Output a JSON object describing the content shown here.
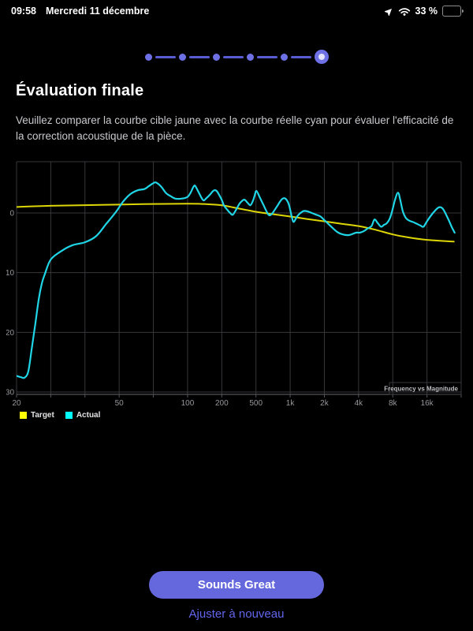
{
  "status_bar": {
    "time": "09:58",
    "date": "Mercredi 11 décembre",
    "battery_percent": "33 %",
    "icons": [
      "location-icon",
      "wifi-icon",
      "battery-icon"
    ]
  },
  "stepper": {
    "total_steps": 6,
    "current_step": 6
  },
  "header": {
    "title": "Évaluation finale",
    "description": "Veuillez comparer la courbe cible jaune avec la courbe réelle cyan pour évaluer l'efficacité de la correction acoustique de la pièce."
  },
  "chart_data": {
    "type": "line",
    "title": "Frequency vs Magnitude",
    "grid": true,
    "legend_position": "bottom-left",
    "x_axis": {
      "scale": "log",
      "unit": "Hz",
      "gridline_freqs": [
        20,
        30,
        40,
        50,
        70,
        100,
        200,
        500,
        1000,
        2000,
        4000,
        8000,
        16000
      ],
      "edge_freq": 24000,
      "tick_label_freqs": [
        20,
        50,
        100,
        200,
        500,
        1000,
        2000,
        4000,
        8000,
        16000
      ],
      "tick_labels": [
        "20",
        "50",
        "100",
        "200",
        "500",
        "1k",
        "2k",
        "4k",
        "8k",
        "16k"
      ]
    },
    "y_axis": {
      "unit": "dB",
      "tick_values": [
        0,
        -10,
        -20,
        -30
      ],
      "range": [
        -30.4,
        8.6
      ]
    },
    "series": [
      {
        "name": "Target",
        "legend_color": "#ffff00",
        "curve_color": "#ddd606",
        "points": [
          [
            20,
            1.0
          ],
          [
            30,
            1.2
          ],
          [
            50,
            1.4
          ],
          [
            70,
            1.5
          ],
          [
            100,
            1.55
          ],
          [
            140,
            1.5
          ],
          [
            200,
            1.3
          ],
          [
            300,
            0.8
          ],
          [
            500,
            0.2
          ],
          [
            700,
            -0.2
          ],
          [
            1000,
            -0.6
          ],
          [
            1400,
            -1.0
          ],
          [
            2000,
            -1.4
          ],
          [
            2800,
            -1.8
          ],
          [
            4000,
            -2.2
          ],
          [
            5600,
            -2.8
          ],
          [
            8000,
            -3.6
          ],
          [
            11000,
            -4.1
          ],
          [
            16000,
            -4.5
          ],
          [
            22000,
            -4.8
          ]
        ]
      },
      {
        "name": "Actual",
        "legend_color": "#00ffff",
        "curve_color": "#1fd5e6",
        "points": [
          [
            20,
            -27.3
          ],
          [
            21,
            -27.5
          ],
          [
            22,
            -27.6
          ],
          [
            23,
            -26.5
          ],
          [
            24,
            -22.5
          ],
          [
            25,
            -18.5
          ],
          [
            26,
            -14.5
          ],
          [
            27,
            -11.8
          ],
          [
            28,
            -10.2
          ],
          [
            30,
            -7.8
          ],
          [
            33,
            -6.3
          ],
          [
            36,
            -5.4
          ],
          [
            40,
            -4.9
          ],
          [
            43,
            -3.9
          ],
          [
            46,
            -1.8
          ],
          [
            49,
            0.2
          ],
          [
            52,
            1.9
          ],
          [
            56,
            3.2
          ],
          [
            60,
            3.8
          ],
          [
            64,
            4.0
          ],
          [
            67,
            4.5
          ],
          [
            70,
            5.0
          ],
          [
            72,
            5.1
          ],
          [
            76,
            4.4
          ],
          [
            80,
            3.3
          ],
          [
            84,
            2.8
          ],
          [
            88,
            2.4
          ],
          [
            94,
            2.4
          ],
          [
            100,
            2.7
          ],
          [
            107,
            3.5
          ],
          [
            112,
            4.3
          ],
          [
            116,
            4.6
          ],
          [
            121,
            4.0
          ],
          [
            128,
            3.1
          ],
          [
            134,
            2.4
          ],
          [
            139,
            2.1
          ],
          [
            147,
            2.5
          ],
          [
            158,
            3.1
          ],
          [
            166,
            3.6
          ],
          [
            172,
            3.8
          ],
          [
            180,
            3.7
          ],
          [
            190,
            3.0
          ],
          [
            200,
            2.2
          ],
          [
            213,
            1.2
          ],
          [
            230,
            0.6
          ],
          [
            250,
            0.0
          ],
          [
            268,
            -0.3
          ],
          [
            290,
            0.4
          ],
          [
            320,
            1.5
          ],
          [
            350,
            2.1
          ],
          [
            371,
            2.2
          ],
          [
            400,
            1.7
          ],
          [
            430,
            1.3
          ],
          [
            460,
            2.0
          ],
          [
            480,
            2.8
          ],
          [
            505,
            3.7
          ],
          [
            540,
            2.6
          ],
          [
            580,
            1.4
          ],
          [
            630,
            0.0
          ],
          [
            660,
            -0.4
          ],
          [
            700,
            0.0
          ],
          [
            760,
            1.0
          ],
          [
            820,
            2.0
          ],
          [
            860,
            2.4
          ],
          [
            910,
            2.4
          ],
          [
            970,
            1.5
          ],
          [
            1030,
            -0.5
          ],
          [
            1070,
            -1.5
          ],
          [
            1140,
            -0.7
          ],
          [
            1200,
            -0.2
          ],
          [
            1300,
            0.3
          ],
          [
            1400,
            0.3
          ],
          [
            1550,
            0.0
          ],
          [
            1700,
            -0.3
          ],
          [
            1850,
            -0.6
          ],
          [
            2050,
            -1.4
          ],
          [
            2300,
            -2.3
          ],
          [
            2600,
            -3.2
          ],
          [
            2900,
            -3.6
          ],
          [
            3300,
            -3.7
          ],
          [
            3800,
            -3.3
          ],
          [
            4100,
            -3.3
          ],
          [
            4500,
            -3.0
          ],
          [
            4800,
            -2.6
          ],
          [
            5200,
            -2.2
          ],
          [
            5520,
            -1.1
          ],
          [
            5900,
            -1.7
          ],
          [
            6300,
            -2.3
          ],
          [
            6700,
            -2.0
          ],
          [
            7100,
            -1.7
          ],
          [
            7500,
            -1.0
          ],
          [
            7900,
            0.3
          ],
          [
            8400,
            2.3
          ],
          [
            8900,
            3.4
          ],
          [
            9300,
            2.2
          ],
          [
            9800,
            0.3
          ],
          [
            10400,
            -0.8
          ],
          [
            11200,
            -1.3
          ],
          [
            12000,
            -1.5
          ],
          [
            13000,
            -1.8
          ],
          [
            14000,
            -2.1
          ],
          [
            14900,
            -2.3
          ],
          [
            16000,
            -1.4
          ],
          [
            17000,
            -0.2
          ],
          [
            18300,
            0.9
          ],
          [
            19300,
            0.7
          ],
          [
            20500,
            -0.9
          ],
          [
            21500,
            -2.4
          ],
          [
            22200,
            -3.3
          ]
        ]
      }
    ]
  },
  "actions": {
    "primary_label": "Sounds Great",
    "secondary_label": "Ajuster à nouveau"
  },
  "colors": {
    "background": "#000000",
    "grid": "#38383b",
    "axis": "#55555a",
    "axis_label": "#98989d",
    "chart_annotation": "#bfbfc3",
    "accent_indigo": "#6568dd",
    "link": "#6266ec"
  }
}
